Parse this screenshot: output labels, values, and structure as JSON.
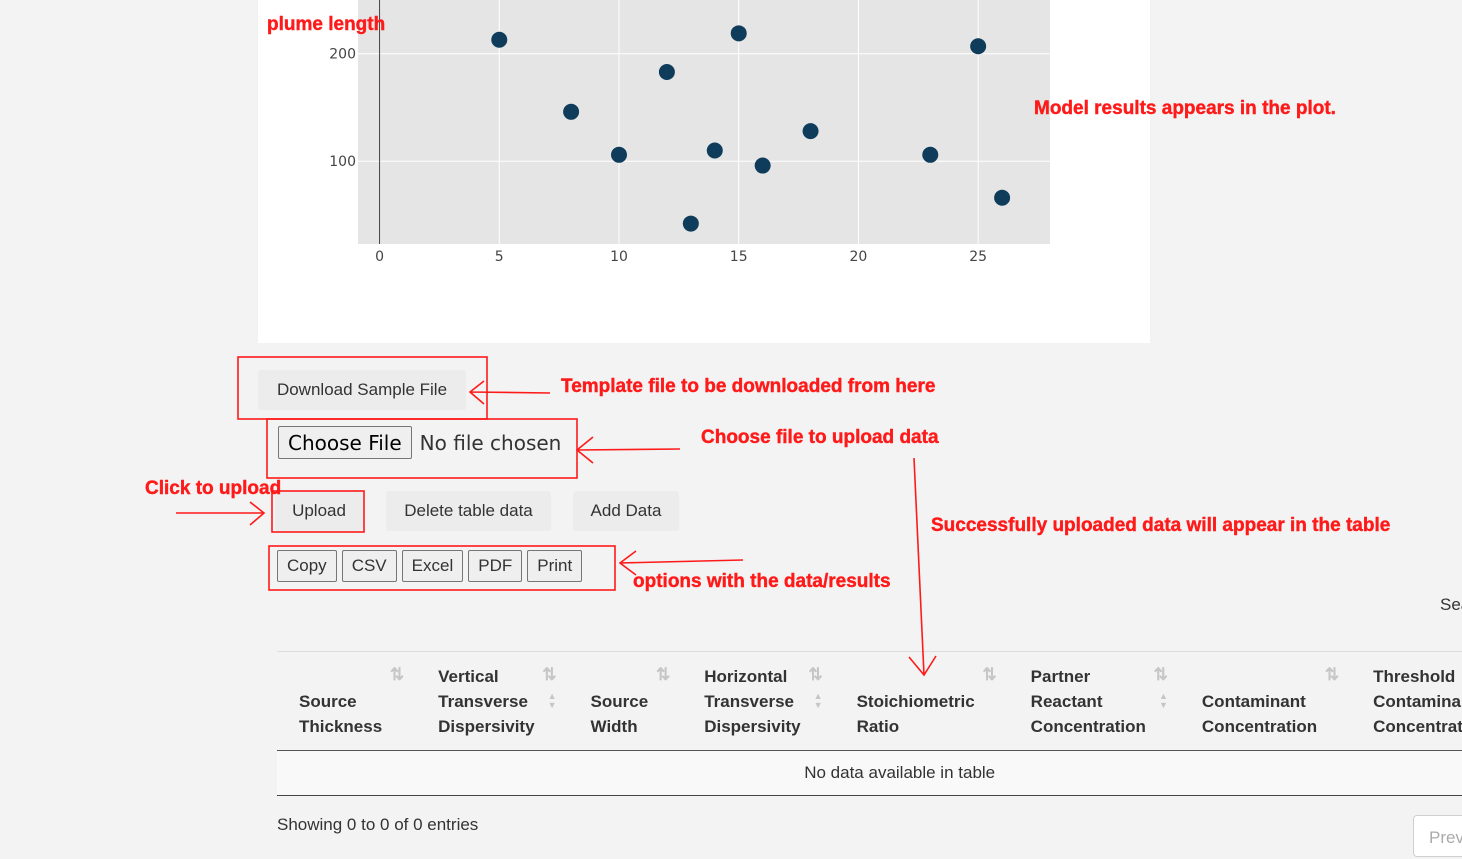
{
  "chart_data": {
    "type": "scatter",
    "ylabel_fragment": "plume length",
    "x": [
      5,
      8,
      10,
      12,
      13,
      14,
      15,
      16,
      18,
      23,
      25,
      26
    ],
    "y": [
      213,
      146,
      106,
      183,
      42,
      110,
      219,
      96,
      128,
      106,
      207,
      66
    ],
    "xticks": [
      "0",
      "5",
      "10",
      "15",
      "20",
      "25"
    ],
    "yticks": [
      "100",
      "200"
    ],
    "xlim": [
      -0.9,
      28
    ],
    "ylim": [
      23,
      250
    ],
    "grid": true,
    "marker_color": "#0f3c5a",
    "plot_background": "#e5e5e5"
  },
  "buttons": {
    "download": "Download Sample File",
    "choose_file": "Choose File",
    "no_file": "No file chosen",
    "upload": "Upload",
    "delete": "Delete table data",
    "add": "Add Data"
  },
  "export_buttons": [
    "Copy",
    "CSV",
    "Excel",
    "PDF",
    "Print"
  ],
  "search_label": "Search:",
  "table": {
    "columns": [
      [
        "Source",
        "Thickness"
      ],
      [
        "Vertical",
        "Transverse",
        "Dispersivity"
      ],
      [
        "Source",
        "Width"
      ],
      [
        "Horizontal",
        "Transverse",
        "Dispersivity"
      ],
      [
        "Stoichiometric",
        "Ratio"
      ],
      [
        "Partner",
        "Reactant",
        "Concentration"
      ],
      [
        "Contaminant",
        "Concentration"
      ],
      [
        "Threshold",
        "Contaminant",
        "Concentration"
      ]
    ],
    "empty_message": "No data available in table",
    "info": "Showing 0 to 0 of 0 entries",
    "prev": "Previous"
  },
  "annotations": {
    "plume": "plume length",
    "model": "Model results appears in the plot.",
    "template": "Template file to be downloaded from here",
    "choose": "Choose file to upload data",
    "click_upload": "Click to upload",
    "success": "Successfully uploaded data will appear in the table",
    "options": "options with the data/results",
    "color": "#ff1a1a"
  }
}
